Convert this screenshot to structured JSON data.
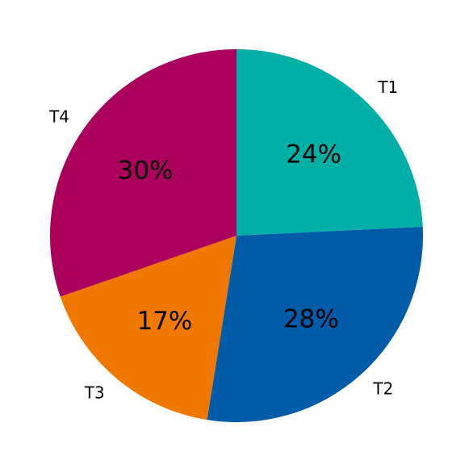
{
  "chart_data": {
    "type": "pie",
    "title": "",
    "start_angle_deg": 90,
    "direction": "clockwise",
    "legend": "none",
    "slices": [
      {
        "label": "T1",
        "value": 24,
        "percent_label": "24%",
        "color": "#00b0a6"
      },
      {
        "label": "T2",
        "value": 28,
        "percent_label": "28%",
        "color": "#005ca8"
      },
      {
        "label": "T3",
        "value": 17,
        "percent_label": "17%",
        "color": "#f07800"
      },
      {
        "label": "T4",
        "value": 30,
        "percent_label": "30%",
        "color": "#ab005b"
      }
    ]
  }
}
